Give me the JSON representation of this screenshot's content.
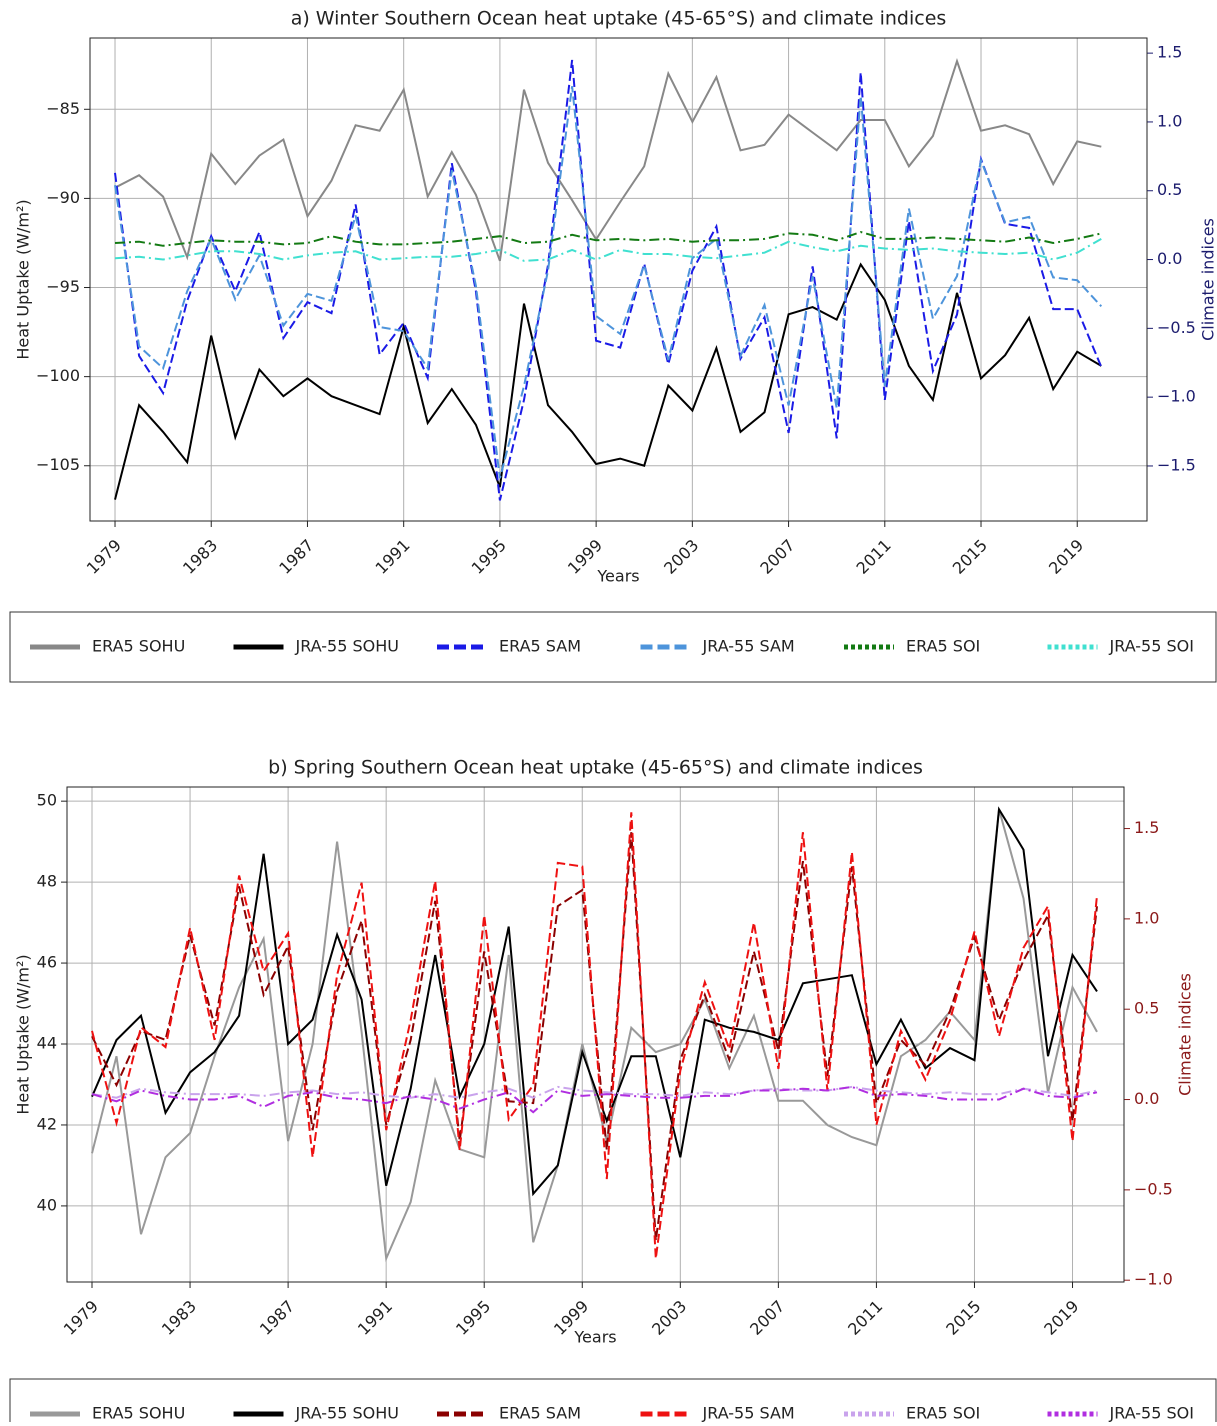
{
  "chart_data": [
    {
      "type": "line",
      "title": "a) Winter Southern Ocean heat uptake (45-65°S) and climate indices",
      "xlabel": "Years",
      "ylabel": "Heat Uptake (W/m²)",
      "y2label": "Climate indices",
      "y2color": "#1c1c6e",
      "grid": true,
      "x": [
        1979,
        1980,
        1981,
        1982,
        1983,
        1984,
        1985,
        1986,
        1987,
        1988,
        1989,
        1990,
        1991,
        1992,
        1993,
        1994,
        1995,
        1996,
        1997,
        1998,
        1999,
        2000,
        2001,
        2002,
        2003,
        2004,
        2005,
        2006,
        2007,
        2008,
        2009,
        2010,
        2011,
        2012,
        2013,
        2014,
        2015,
        2016,
        2017,
        2018,
        2019,
        2020
      ],
      "xlim": [
        1977.96,
        2021.9
      ],
      "xticks": [
        1979,
        1983,
        1987,
        1991,
        1995,
        1999,
        2003,
        2007,
        2011,
        2015,
        2019
      ],
      "ylim": [
        -108.1,
        -81.0
      ],
      "yticks": [
        {
          "value": -105,
          "label": "−105"
        },
        {
          "value": -100,
          "label": "−100"
        },
        {
          "value": -95,
          "label": "−95"
        },
        {
          "value": -90,
          "label": "−90"
        },
        {
          "value": -85,
          "label": "−85"
        }
      ],
      "y2lim": [
        -1.9,
        1.61
      ],
      "y2ticks": [
        {
          "value": -1.5,
          "label": "−1.5"
        },
        {
          "value": -1.0,
          "label": "−1.0"
        },
        {
          "value": -0.5,
          "label": "−0.5"
        },
        {
          "value": 0,
          "label": "0.0"
        },
        0.5,
        {
          "value": 1.0,
          "label": "1.0"
        },
        1.5
      ],
      "series": [
        {
          "name": "ERA5 SOHU",
          "color": "#888888",
          "style": "solid",
          "axis": "y",
          "values": [
            -89.4,
            -88.7,
            -89.9,
            -93.3,
            -87.5,
            -89.2,
            -87.6,
            -86.7,
            -91.0,
            -89.0,
            -85.9,
            -86.2,
            -83.9,
            -89.9,
            -87.4,
            -89.8,
            -93.5,
            -83.9,
            -88.0,
            -90.1,
            -92.3,
            -90.2,
            -88.2,
            -83.0,
            -85.7,
            -83.2,
            -87.3,
            -87.0,
            -85.3,
            -86.3,
            -87.3,
            -85.6,
            -85.6,
            -88.2,
            -86.5,
            -82.3,
            -86.2,
            -85.9,
            -86.4,
            -89.2,
            -86.8,
            -87.1
          ]
        },
        {
          "name": "JRA-55 SOHU",
          "color": "#000000",
          "style": "solid",
          "axis": "y",
          "values": [
            -106.9,
            -101.6,
            -103.1,
            -104.8,
            -97.7,
            -103.4,
            -99.6,
            -101.1,
            -100.1,
            -101.1,
            -101.6,
            -102.1,
            -97.2,
            -102.6,
            -100.7,
            -102.7,
            -106.2,
            -95.9,
            -101.6,
            -103.1,
            -104.9,
            -104.6,
            -105.0,
            -100.5,
            -101.9,
            -98.4,
            -103.1,
            -102.0,
            -96.5,
            -96.1,
            -96.8,
            -93.7,
            -95.7,
            -99.4,
            -101.3,
            -95.3,
            -100.1,
            -98.8,
            -96.7,
            -100.7,
            -98.6,
            -99.4
          ]
        },
        {
          "name": "ERA5 SAM",
          "color": "#1a1ae6",
          "style": "dashed",
          "axis": "y2",
          "values": [
            0.63,
            -0.7,
            -0.97,
            -0.3,
            0.17,
            -0.23,
            0.2,
            -0.57,
            -0.31,
            -0.39,
            0.4,
            -0.69,
            -0.46,
            -0.86,
            0.7,
            -0.23,
            -1.75,
            -1.02,
            -0.04,
            1.45,
            -0.59,
            -0.64,
            -0.03,
            -0.76,
            -0.08,
            0.24,
            -0.72,
            -0.42,
            -1.26,
            -0.05,
            -1.3,
            1.36,
            -1.02,
            0.28,
            -0.81,
            -0.4,
            0.73,
            0.26,
            0.23,
            -0.36,
            -0.36,
            -0.78
          ]
        },
        {
          "name": "JRA-55 SAM",
          "color": "#4d94db",
          "style": "dashed",
          "axis": "y2",
          "values": [
            0.54,
            -0.63,
            -0.79,
            -0.23,
            0.15,
            -0.29,
            0.03,
            -0.48,
            -0.25,
            -0.3,
            0.32,
            -0.49,
            -0.52,
            -0.79,
            0.65,
            -0.19,
            -1.59,
            -0.92,
            -0.08,
            1.26,
            -0.41,
            -0.54,
            -0.04,
            -0.73,
            0.01,
            0.15,
            -0.7,
            -0.33,
            -1.06,
            -0.12,
            -1.08,
            1.19,
            -0.92,
            0.37,
            -0.43,
            -0.12,
            0.72,
            0.27,
            0.31,
            -0.13,
            -0.15,
            -0.34
          ]
        },
        {
          "name": "ERA5 SOI",
          "color": "#137a13",
          "style": "dashdot",
          "axis": "y2",
          "values": [
            0.12,
            0.13,
            0.1,
            0.12,
            0.14,
            0.13,
            0.13,
            0.11,
            0.12,
            0.17,
            0.13,
            0.11,
            0.11,
            0.12,
            0.13,
            0.15,
            0.17,
            0.12,
            0.13,
            0.18,
            0.14,
            0.15,
            0.14,
            0.15,
            0.13,
            0.14,
            0.14,
            0.15,
            0.19,
            0.18,
            0.14,
            0.2,
            0.15,
            0.15,
            0.16,
            0.15,
            0.14,
            0.13,
            0.16,
            0.12,
            0.15,
            0.19
          ]
        },
        {
          "name": "JRA-55 SOI",
          "color": "#40e0d0",
          "style": "dashdot",
          "axis": "y2",
          "values": [
            0.01,
            0.02,
            0.0,
            0.03,
            0.06,
            0.06,
            0.04,
            0.0,
            0.03,
            0.05,
            0.06,
            0.0,
            0.01,
            0.02,
            0.02,
            0.04,
            0.07,
            -0.01,
            0.0,
            0.07,
            0.0,
            0.07,
            0.04,
            0.04,
            0.02,
            0.01,
            0.03,
            0.05,
            0.13,
            0.09,
            0.06,
            0.1,
            0.08,
            0.07,
            0.08,
            0.06,
            0.05,
            0.04,
            0.05,
            0.0,
            0.05,
            0.15
          ]
        }
      ]
    },
    {
      "type": "line",
      "title": "b) Spring Southern Ocean heat uptake (45-65°S) and climate indices",
      "xlabel": "Years",
      "ylabel": "Heat Uptake (W/m²)",
      "y2label": "Climate indices",
      "y2color": "#8b1a1a",
      "grid": true,
      "x": [
        1979,
        1980,
        1981,
        1982,
        1983,
        1984,
        1985,
        1986,
        1987,
        1988,
        1989,
        1990,
        1991,
        1992,
        1993,
        1994,
        1995,
        1996,
        1997,
        1998,
        1999,
        2000,
        2001,
        2002,
        2003,
        2004,
        2005,
        2006,
        2007,
        2008,
        2009,
        2010,
        2011,
        2012,
        2013,
        2014,
        2015,
        2016,
        2017,
        2018,
        2019,
        2020
      ],
      "xlim": [
        1977.98,
        2021.1
      ],
      "xticks": [
        1979,
        1983,
        1987,
        1991,
        1995,
        1999,
        2003,
        2007,
        2011,
        2015,
        2019
      ],
      "ylim": [
        38.12,
        50.35
      ],
      "yticks": [
        40,
        42,
        44,
        46,
        48,
        50
      ],
      "y2lim": [
        -1.01,
        1.73
      ],
      "y2ticks": [
        {
          "value": -1.0,
          "label": "−1.0"
        },
        {
          "value": -0.5,
          "label": "−0.5"
        },
        {
          "value": 0,
          "label": "0.0"
        },
        0.5,
        {
          "value": 1.0,
          "label": "1.0"
        },
        1.5
      ],
      "series": [
        {
          "name": "ERA5 SOHU",
          "color": "#999999",
          "style": "solid",
          "axis": "y",
          "values": [
            41.3,
            43.7,
            39.3,
            41.2,
            41.8,
            43.7,
            45.4,
            46.6,
            41.6,
            44.0,
            49.0,
            44.3,
            38.7,
            40.1,
            43.1,
            41.4,
            41.2,
            46.2,
            39.1,
            41.0,
            44.0,
            41.6,
            44.4,
            43.8,
            44.0,
            45.1,
            43.4,
            44.7,
            42.6,
            42.6,
            42.0,
            41.7,
            41.5,
            43.7,
            44.1,
            44.8,
            44.1,
            49.8,
            47.6,
            42.8,
            45.4,
            44.3
          ]
        },
        {
          "name": "JRA-55 SOHU",
          "color": "#000000",
          "style": "solid",
          "axis": "y",
          "values": [
            42.7,
            44.1,
            44.7,
            42.3,
            43.3,
            43.8,
            44.7,
            48.7,
            44.0,
            44.6,
            46.7,
            45.1,
            40.5,
            42.9,
            46.2,
            42.7,
            44.0,
            46.9,
            40.3,
            41.0,
            43.8,
            42.1,
            43.7,
            43.7,
            41.2,
            44.6,
            44.4,
            44.3,
            44.1,
            45.5,
            45.6,
            45.7,
            43.5,
            44.6,
            43.4,
            43.9,
            43.6,
            49.8,
            48.8,
            43.7,
            46.2,
            45.3
          ]
        },
        {
          "name": "ERA5 SAM",
          "color": "#8b0000",
          "style": "dashed",
          "axis": "y2",
          "values": [
            0.35,
            0.08,
            0.38,
            0.33,
            0.91,
            0.41,
            1.18,
            0.58,
            0.85,
            -0.17,
            0.6,
            0.99,
            -0.14,
            0.33,
            1.1,
            -0.23,
            0.82,
            -0.01,
            -0.02,
            1.07,
            1.16,
            -0.28,
            1.48,
            -0.78,
            0.22,
            0.58,
            0.22,
            0.82,
            0.27,
            1.32,
            0.13,
            1.29,
            -0.02,
            0.33,
            0.19,
            0.49,
            0.9,
            0.44,
            0.77,
            1.02,
            -0.12,
            1.07
          ]
        },
        {
          "name": "JRA-55 SAM",
          "color": "#ee1111",
          "style": "dashed",
          "axis": "y2",
          "values": [
            0.38,
            -0.13,
            0.4,
            0.29,
            0.95,
            0.33,
            1.24,
            0.71,
            0.92,
            -0.32,
            0.69,
            1.2,
            -0.17,
            0.44,
            1.21,
            -0.28,
            1.02,
            -0.11,
            0.08,
            1.31,
            1.29,
            -0.44,
            1.59,
            -0.88,
            0.16,
            0.65,
            0.28,
            0.98,
            0.17,
            1.48,
            0.05,
            1.37,
            -0.14,
            0.38,
            0.11,
            0.44,
            0.93,
            0.35,
            0.84,
            1.07,
            -0.23,
            1.13
          ]
        },
        {
          "name": "ERA5 SOI",
          "color": "#c9a3ec",
          "style": "dashdot",
          "axis": "y2",
          "values": [
            0.03,
            0.01,
            0.06,
            0.04,
            0.03,
            0.03,
            0.03,
            0.02,
            0.04,
            0.05,
            0.03,
            0.04,
            0.02,
            0.01,
            0.03,
            0.01,
            0.04,
            0.06,
            0.01,
            0.07,
            0.05,
            0.04,
            0.03,
            0.03,
            0.02,
            0.04,
            0.03,
            0.05,
            0.06,
            0.05,
            0.05,
            0.07,
            0.05,
            0.04,
            0.03,
            0.04,
            0.03,
            0.03,
            0.06,
            0.04,
            0.02,
            0.05
          ]
        },
        {
          "name": "JRA-55 SOI",
          "color": "#b02ee0",
          "style": "dashdot",
          "axis": "y2",
          "values": [
            0.03,
            -0.01,
            0.05,
            0.02,
            0.0,
            0.0,
            0.02,
            -0.04,
            0.02,
            0.04,
            0.01,
            0.0,
            -0.02,
            0.02,
            0.0,
            -0.05,
            0.0,
            0.04,
            -0.07,
            0.05,
            0.02,
            0.03,
            0.02,
            0.01,
            0.01,
            0.02,
            0.02,
            0.05,
            0.05,
            0.06,
            0.05,
            0.07,
            0.02,
            0.03,
            0.02,
            0.0,
            0.0,
            0.0,
            0.06,
            0.02,
            0.01,
            0.04
          ]
        }
      ]
    }
  ]
}
